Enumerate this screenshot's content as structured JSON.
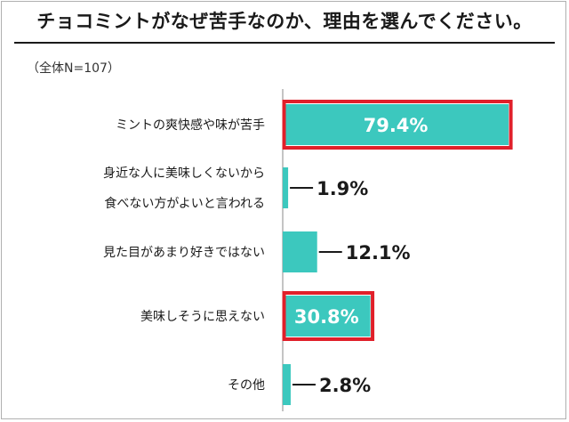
{
  "title": "チョコミントがなぜ苦手なのか、理由を選んでください。",
  "subtitle": "（全体N=107）",
  "colors": {
    "bar": "#3cc8be",
    "highlight_border": "#e0202a",
    "axis": "#888888",
    "text": "#1a1a1a"
  },
  "chart_data": {
    "type": "bar",
    "orientation": "horizontal",
    "categories": [
      [
        "ミントの爽快感や味が苦手"
      ],
      [
        "身近な人に美味しくないから",
        "食べない方がよいと言われる"
      ],
      [
        "見た目があまり好きではない"
      ],
      [
        "美味しそうに思えない"
      ],
      [
        "その他"
      ]
    ],
    "values": [
      79.4,
      1.9,
      12.1,
      30.8,
      2.8
    ],
    "value_labels": [
      "79.4%",
      "1.9%",
      "12.1%",
      "30.8%",
      "2.8%"
    ],
    "highlighted": [
      true,
      false,
      false,
      true,
      false
    ],
    "label_inside": [
      true,
      false,
      false,
      true,
      false
    ],
    "xlim": [
      0,
      100
    ],
    "grid": false,
    "legend": "none"
  }
}
